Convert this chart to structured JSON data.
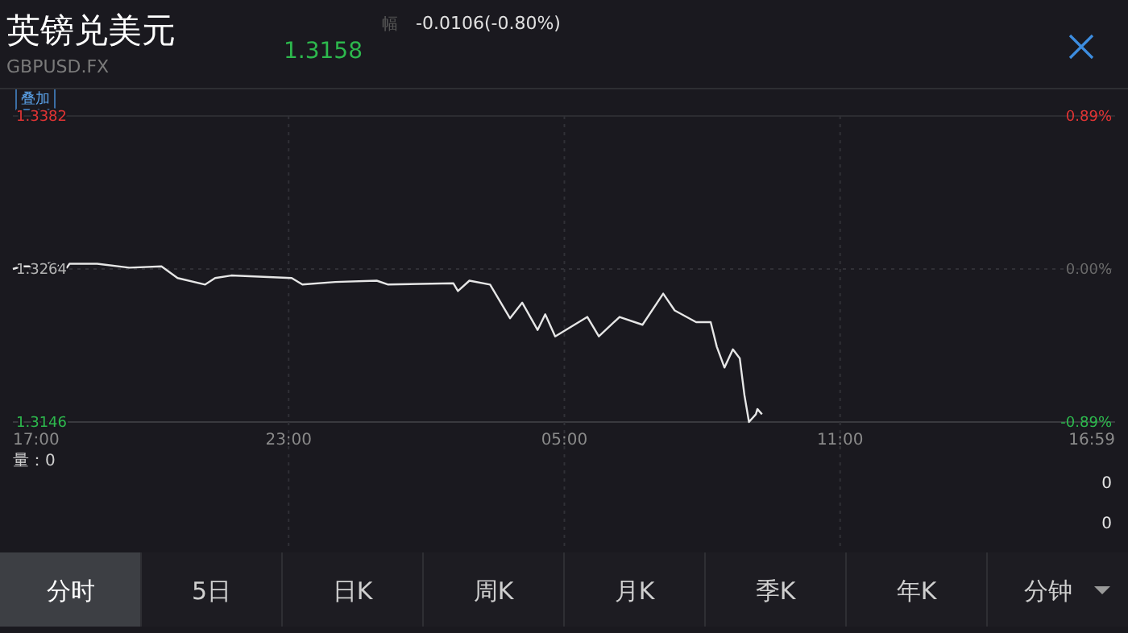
{
  "chart_data": [
    {
      "type": "line",
      "title": "英镑兑美元",
      "subtitle": "GBPUSD.FX",
      "annotations": [
        "1.3158",
        "幅",
        "-0.0106(-0.80%)",
        "叠加"
      ],
      "x": [
        "2000-01-01T17:00",
        "2000-01-01T17:11",
        "2000-01-01T17:25",
        "2000-01-01T17:53",
        "2000-01-01T18:08",
        "2000-01-01T18:14",
        "2000-01-01T18:50",
        "2000-01-01T19:32",
        "2000-01-01T20:14",
        "2000-01-01T20:35",
        "2000-01-01T21:11",
        "2000-01-01T21:24",
        "2000-01-01T21:45",
        "2000-01-01T23:04",
        "2000-01-01T23:18",
        "2000-01-02T00:01",
        "2000-01-02T00:55",
        "2000-01-02T01:10",
        "2000-01-02T02:35",
        "2000-01-02T02:41",
        "2000-01-02T02:56",
        "2000-01-02T03:23",
        "2000-01-02T03:49",
        "2000-01-02T04:05",
        "2000-01-02T04:25",
        "2000-01-02T04:35",
        "2000-01-02T04:48",
        "2000-01-02T05:30",
        "2000-01-02T05:45",
        "2000-01-02T06:12",
        "2000-01-02T06:42",
        "2000-01-02T07:09",
        "2000-01-02T07:24",
        "2000-01-02T07:52",
        "2000-01-02T08:11",
        "2000-01-02T08:19",
        "2000-01-02T08:29",
        "2000-01-02T08:40",
        "2000-01-02T08:49",
        "2000-01-02T08:55",
        "2000-01-02T09:01",
        "2000-01-02T09:10",
        "2000-01-02T09:12",
        "2000-01-02T09:18"
      ],
      "values": [
        1.3264,
        1.3266,
        1.3266,
        1.3269,
        1.3263,
        1.3268,
        1.3268,
        1.3265,
        1.3266,
        1.3257,
        1.3252,
        1.3257,
        1.3259,
        1.3257,
        1.3252,
        1.3254,
        1.3255,
        1.3252,
        1.3253,
        1.3247,
        1.3255,
        1.3252,
        1.3226,
        1.3238,
        1.3217,
        1.3229,
        1.3212,
        1.3227,
        1.3212,
        1.3227,
        1.3221,
        1.3245,
        1.3232,
        1.3223,
        1.3223,
        1.3204,
        1.3188,
        1.3202,
        1.3195,
        1.3167,
        1.3146,
        1.3152,
        1.3156,
        1.3152
      ],
      "color": "#e6e6e6",
      "xlim": [
        "2000-01-01T17:00",
        "2000-01-02T16:59"
      ],
      "xticks": [
        {
          "value": "2000-01-01T17:00",
          "label": "17:00"
        },
        {
          "value": "2000-01-01T23:00",
          "label": "23:00"
        },
        {
          "value": "2000-01-02T05:00",
          "label": "05:00"
        },
        {
          "value": "2000-01-02T11:00",
          "label": "11:00"
        },
        {
          "value": "2000-01-02T16:59",
          "label": "16:59"
        }
      ],
      "ylim": [
        1.3146,
        1.3382
      ],
      "yticks": [
        1.3146,
        1.3264,
        1.3382
      ],
      "y2lim": [
        -0.89,
        0.89
      ],
      "y2ticks": [
        {
          "value": -0.89,
          "label": "-0.89%"
        },
        {
          "value": 0,
          "label": "0.00%"
        },
        {
          "value": 0.89,
          "label": "0.89%"
        }
      ],
      "grid": true
    },
    {
      "type": "other",
      "title": "量：0",
      "annotations": [
        "0",
        "0"
      ]
    },
    {
      "type": "other",
      "annotations": [
        "分时",
        "5日",
        "日K",
        "周K",
        "月K",
        "季K",
        "年K",
        "分钟"
      ]
    }
  ]
}
